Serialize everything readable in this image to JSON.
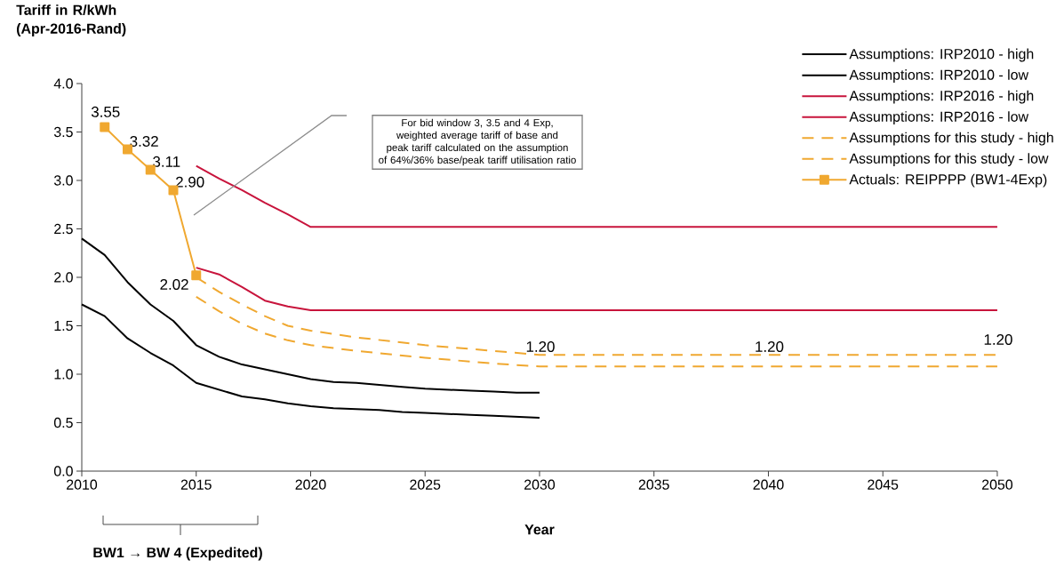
{
  "chart_data": {
    "type": "line",
    "ylabel": "Tariff in R/kWh (Apr-2016-Rand)",
    "xlabel": "Year",
    "xlim": [
      2010,
      2050
    ],
    "xticks": [
      2010,
      2015,
      2020,
      2025,
      2030,
      2035,
      2040,
      2045,
      2050
    ],
    "ylim": [
      0,
      4
    ],
    "yticks": [
      {
        "value": 0,
        "label": "0.0"
      },
      {
        "value": 0.5,
        "label": "0.5"
      },
      {
        "value": 1,
        "label": "1.0"
      },
      {
        "value": 1.5,
        "label": "1.5"
      },
      {
        "value": 2,
        "label": "2.0"
      },
      {
        "value": 2.5,
        "label": "2.5"
      },
      {
        "value": 3,
        "label": "3.0"
      },
      {
        "value": 3.5,
        "label": "3.5"
      },
      {
        "value": 4,
        "label": "4.0"
      }
    ],
    "legend": "top right",
    "series": [
      {
        "name": "Assumptions: IRP2010 - high",
        "color": "#000000",
        "x": [
          2010,
          2011,
          2012,
          2013,
          2014,
          2015,
          2016,
          2017,
          2018,
          2019,
          2020,
          2021,
          2022,
          2023,
          2024,
          2025,
          2026,
          2027,
          2028,
          2029,
          2030
        ],
        "values": [
          2.4,
          2.23,
          1.95,
          1.72,
          1.55,
          1.3,
          1.18,
          1.1,
          1.05,
          1.0,
          0.95,
          0.92,
          0.91,
          0.89,
          0.87,
          0.85,
          0.84,
          0.83,
          0.82,
          0.81,
          0.81
        ]
      },
      {
        "name": "Assumptions: IRP2010 - low",
        "color": "#000000",
        "x": [
          2010,
          2011,
          2012,
          2013,
          2014,
          2015,
          2016,
          2017,
          2018,
          2019,
          2020,
          2021,
          2022,
          2023,
          2024,
          2025,
          2026,
          2027,
          2028,
          2029,
          2030
        ],
        "values": [
          1.72,
          1.6,
          1.37,
          1.22,
          1.09,
          0.91,
          0.84,
          0.77,
          0.74,
          0.7,
          0.67,
          0.65,
          0.64,
          0.63,
          0.61,
          0.6,
          0.59,
          0.58,
          0.57,
          0.56,
          0.55
        ]
      },
      {
        "name": "Assumptions: IRP2016 - high",
        "color": "#c8143c",
        "x": [
          2015,
          2016,
          2017,
          2018,
          2019,
          2020,
          2050
        ],
        "values": [
          3.15,
          3.02,
          2.9,
          2.77,
          2.65,
          2.52,
          2.52
        ]
      },
      {
        "name": "Assumptions: IRP2016 - low",
        "color": "#c8143c",
        "x": [
          2015,
          2016,
          2017,
          2018,
          2019,
          2020,
          2050
        ],
        "values": [
          2.1,
          2.03,
          1.9,
          1.76,
          1.7,
          1.66,
          1.66
        ]
      },
      {
        "name": "Assumptions for this study - high",
        "color": "#f0a830",
        "line_style": "dashed",
        "x": [
          2015,
          2016,
          2017,
          2018,
          2019,
          2020,
          2022,
          2025,
          2028,
          2030,
          2040,
          2050
        ],
        "values": [
          2.0,
          1.85,
          1.72,
          1.6,
          1.5,
          1.45,
          1.38,
          1.3,
          1.24,
          1.2,
          1.2,
          1.2
        ],
        "value_labels": [
          null,
          null,
          null,
          null,
          null,
          null,
          null,
          null,
          null,
          "1.20",
          "1.20",
          "1.20"
        ]
      },
      {
        "name": "Assumptions for this study - low",
        "color": "#f0a830",
        "line_style": "dashed",
        "x": [
          2015,
          2016,
          2017,
          2018,
          2019,
          2020,
          2022,
          2025,
          2028,
          2030,
          2050
        ],
        "values": [
          1.8,
          1.65,
          1.52,
          1.42,
          1.35,
          1.3,
          1.24,
          1.17,
          1.11,
          1.08,
          1.08
        ]
      },
      {
        "name": "Actuals: REIPPPP (BW1-4Exp)",
        "color": "#f0a830",
        "marker": "square",
        "x": [
          2011,
          2012,
          2013,
          2014,
          2015
        ],
        "values": [
          3.55,
          3.32,
          3.11,
          2.9,
          2.02
        ],
        "value_labels": [
          "3.55",
          "3.32",
          "3.11",
          "2.90",
          "2.02"
        ]
      }
    ],
    "annotations": [
      "For bid window 3, 3.5 and 4 Exp, weighted average tariff of base and peak tariff calculated on the assumption of 64%/36% base/peak tariff utilisation ratio",
      "BW1 → BW 4 (Expedited)"
    ]
  }
}
